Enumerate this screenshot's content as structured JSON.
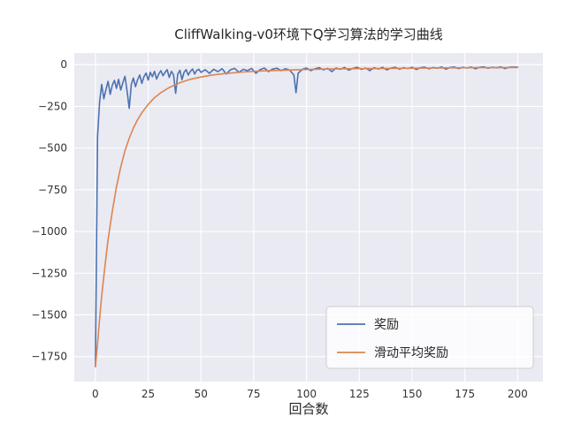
{
  "chart_data": {
    "type": "line",
    "title": "CliffWalking-v0环境下Q学习算法的学习曲线",
    "xlabel": "回合数",
    "ylabel": "",
    "xlim": [
      -10,
      212
    ],
    "ylim": [
      -1900,
      70
    ],
    "xticks": [
      0,
      25,
      50,
      75,
      100,
      125,
      150,
      175,
      200
    ],
    "yticks": [
      0,
      -250,
      -500,
      -750,
      -1000,
      -1250,
      -1500,
      -1750
    ],
    "grid": true,
    "grid_color": "#ffffff",
    "plot_background": "#eaeaf2",
    "figure_background": "#ffffff",
    "tick_color": "#333333",
    "legend_position": "lower right",
    "series": [
      {
        "name": "奖励",
        "color": "#4C72B0",
        "x": [
          0,
          1,
          2,
          3,
          4,
          5,
          6,
          7,
          8,
          9,
          10,
          11,
          12,
          13,
          14,
          15,
          16,
          17,
          18,
          19,
          20,
          21,
          22,
          23,
          24,
          25,
          26,
          27,
          28,
          29,
          30,
          31,
          32,
          33,
          34,
          35,
          36,
          37,
          38,
          39,
          40,
          41,
          42,
          43,
          44,
          45,
          46,
          47,
          48,
          49,
          50,
          52,
          54,
          56,
          58,
          60,
          62,
          64,
          66,
          68,
          70,
          72,
          74,
          76,
          78,
          80,
          82,
          84,
          86,
          88,
          90,
          92,
          94,
          95,
          96,
          98,
          100,
          102,
          104,
          106,
          108,
          110,
          112,
          114,
          116,
          118,
          120,
          122,
          124,
          126,
          128,
          130,
          132,
          134,
          136,
          138,
          140,
          142,
          144,
          146,
          148,
          150,
          152,
          154,
          156,
          158,
          160,
          162,
          164,
          166,
          168,
          170,
          172,
          174,
          176,
          178,
          180,
          182,
          184,
          186,
          188,
          190,
          192,
          194,
          196,
          198,
          200
        ],
        "y": [
          -1810,
          -430,
          -225,
          -118,
          -205,
          -148,
          -100,
          -178,
          -122,
          -94,
          -142,
          -88,
          -152,
          -108,
          -70,
          -158,
          -262,
          -118,
          -80,
          -132,
          -90,
          -62,
          -112,
          -72,
          -50,
          -92,
          -46,
          -72,
          -40,
          -86,
          -56,
          -36,
          -66,
          -46,
          -30,
          -76,
          -40,
          -60,
          -172,
          -56,
          -34,
          -90,
          -46,
          -30,
          -62,
          -40,
          -26,
          -56,
          -34,
          -28,
          -46,
          -30,
          -52,
          -28,
          -42,
          -24,
          -56,
          -30,
          -22,
          -46,
          -28,
          -36,
          -22,
          -52,
          -30,
          -20,
          -42,
          -26,
          -21,
          -36,
          -24,
          -32,
          -62,
          -168,
          -52,
          -28,
          -20,
          -36,
          -24,
          -18,
          -31,
          -22,
          -42,
          -20,
          -28,
          -17,
          -33,
          -22,
          -16,
          -28,
          -20,
          -36,
          -18,
          -26,
          -16,
          -31,
          -20,
          -15,
          -27,
          -18,
          -23,
          -15,
          -29,
          -18,
          -15,
          -25,
          -17,
          -21,
          -14,
          -27,
          -17,
          -14,
          -23,
          -16,
          -20,
          -14,
          -25,
          -16,
          -13,
          -21,
          -15,
          -19,
          -13,
          -23,
          -15,
          -14,
          -15
        ]
      },
      {
        "name": "滑动平均奖励",
        "color": "#DD8452",
        "x": [
          0,
          1,
          2,
          3,
          4,
          5,
          6,
          7,
          8,
          10,
          12,
          14,
          16,
          18,
          20,
          22,
          25,
          28,
          31,
          35,
          40,
          45,
          50,
          55,
          60,
          70,
          80,
          90,
          100,
          110,
          120,
          130,
          140,
          150,
          160,
          170,
          180,
          190,
          200
        ],
        "y": [
          -1810,
          -1672,
          -1527,
          -1386,
          -1268,
          -1156,
          -1050,
          -963,
          -879,
          -732,
          -614,
          -517,
          -441,
          -380,
          -330,
          -288,
          -238,
          -198,
          -168,
          -137,
          -108,
          -88,
          -74,
          -63,
          -55,
          -44,
          -37,
          -33,
          -29,
          -26,
          -24,
          -23,
          -22,
          -21,
          -20,
          -19,
          -18,
          -18,
          -17
        ]
      }
    ]
  }
}
